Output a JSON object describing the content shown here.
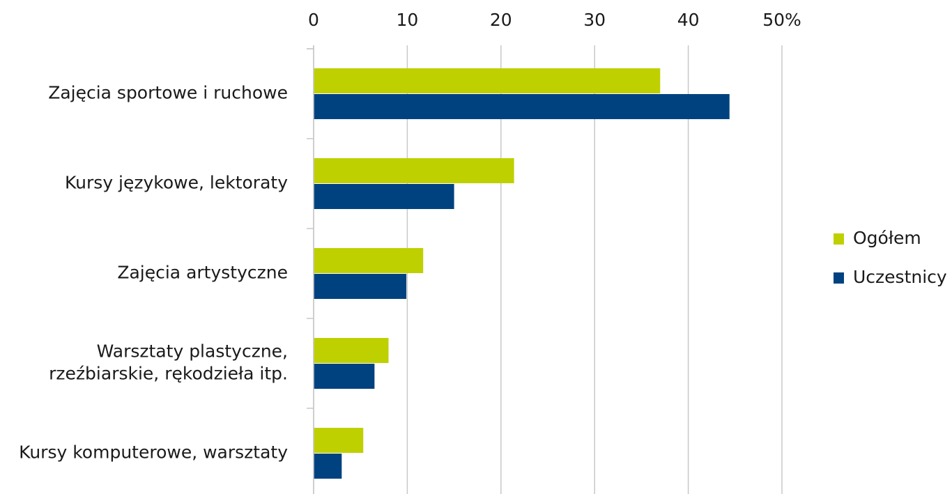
{
  "chart_data": {
    "type": "hbar",
    "categories": [
      "Zajęcia sportowe i ruchowe",
      "Kursy językowe, lektoraty",
      "Zajęcia artystyczne",
      "Warsztaty plastyczne,\nrzeźbiarskie, rękodzieła itp.",
      "Kursy komputerowe, warsztaty"
    ],
    "series": [
      {
        "name": "Ogółem",
        "color": "#bfd000",
        "values": [
          37.0,
          21.4,
          11.7,
          8.0,
          5.3
        ]
      },
      {
        "name": "Uczestnicy",
        "color": "#00427f",
        "values": [
          44.4,
          15.0,
          9.9,
          6.5,
          3.0
        ]
      }
    ],
    "xlim": [
      0,
      50
    ],
    "xticks": [
      0,
      10,
      20,
      30,
      40,
      {
        "value": 50,
        "label": "50%"
      }
    ],
    "grid": true,
    "legend": "right"
  }
}
